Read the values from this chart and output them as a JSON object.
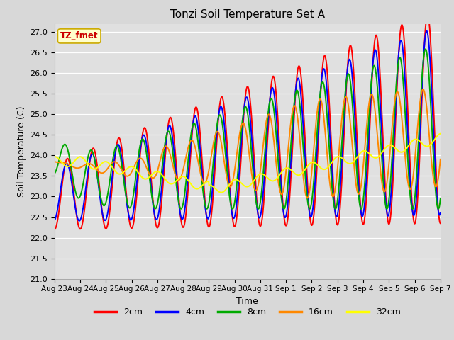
{
  "title": "Tonzi Soil Temperature Set A",
  "xlabel": "Time",
  "ylabel": "Soil Temperature (C)",
  "annotation": "TZ_fmet",
  "annotation_bg": "#ffffcc",
  "annotation_border": "#ccaa00",
  "ylim": [
    21.0,
    27.2
  ],
  "yticks": [
    21.0,
    21.5,
    22.0,
    22.5,
    23.0,
    23.5,
    24.0,
    24.5,
    25.0,
    25.5,
    26.0,
    26.5,
    27.0
  ],
  "x_labels": [
    "Aug 23",
    "Aug 24",
    "Aug 25",
    "Aug 26",
    "Aug 27",
    "Aug 28",
    "Aug 29",
    "Aug 30",
    "Aug 31",
    "Sep 1",
    "Sep 2",
    "Sep 3",
    "Sep 4",
    "Sep 5",
    "Sep 6",
    "Sep 7"
  ],
  "colors": {
    "2cm": "#ff0000",
    "4cm": "#0000ff",
    "8cm": "#00aa00",
    "16cm": "#ff8800",
    "32cm": "#ffff00"
  },
  "legend_labels": [
    "2cm",
    "4cm",
    "8cm",
    "16cm",
    "32cm"
  ],
  "plot_bg": "#e0e0e0",
  "fig_bg": "#d8d8d8",
  "n_days": 15
}
